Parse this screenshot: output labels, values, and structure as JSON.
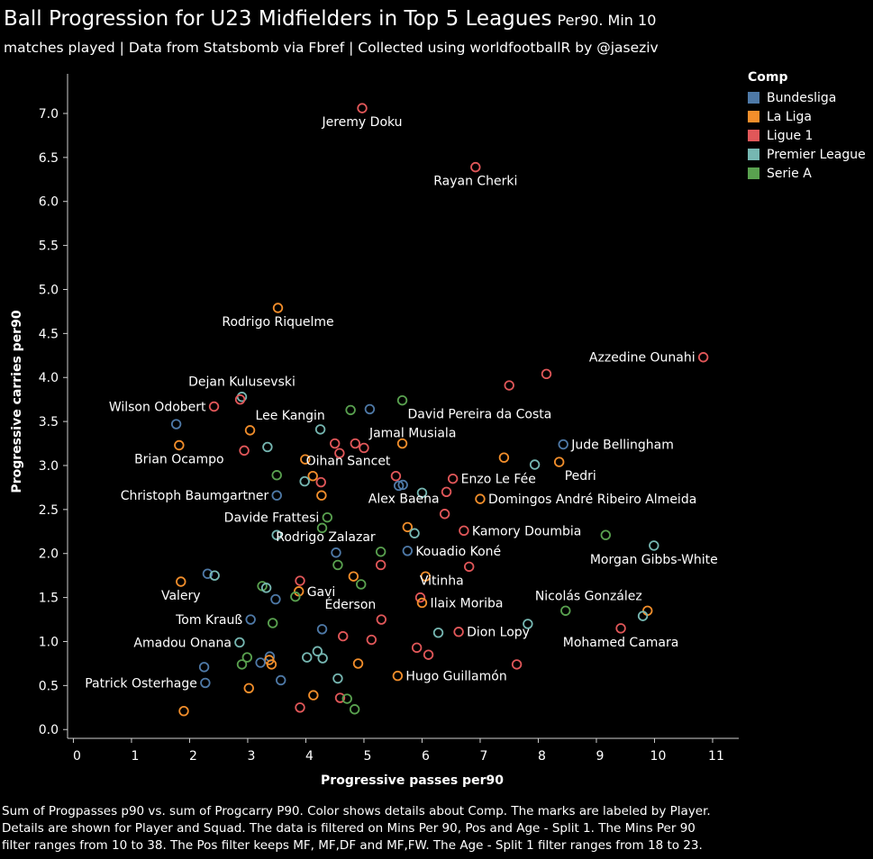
{
  "header": {
    "title": "Ball Progression for U23 Midfielders in Top 5 Leagues",
    "title_suffix": "Per90. Min 10",
    "subtitle": "matches played | Data from Statsbomb via Fbref | Collected using worldfootballR by @jaseziv"
  },
  "caption": {
    "line1": "Sum of Progpasses p90 vs. sum of Progcarry P90.  Color shows details about Comp.  The marks are labeled by Player.",
    "line2": "Details are shown for Player and Squad. The data is filtered on Mins Per 90, Pos and Age - Split 1. The Mins Per 90",
    "line3": "filter ranges from 10 to 38. The Pos filter keeps MF, MF,DF and MF,FW. The Age - Split 1 filter ranges from 18 to 23."
  },
  "legend": {
    "title": "Comp",
    "items": [
      {
        "label": "Bundesliga",
        "color": "#4e79a7"
      },
      {
        "label": "La Liga",
        "color": "#f28e2b"
      },
      {
        "label": "Ligue 1",
        "color": "#e15759"
      },
      {
        "label": "Premier League",
        "color": "#76b7b2"
      },
      {
        "label": "Serie A",
        "color": "#59a14f"
      }
    ]
  },
  "chart_data": {
    "type": "scatter",
    "xlabel": "Progressive passes per90",
    "ylabel": "Progressive carries per90",
    "xlim": [
      -0.1,
      11.45
    ],
    "ylim": [
      -0.1,
      7.45
    ],
    "xticks": [
      "0",
      "1",
      "2",
      "3",
      "4",
      "5",
      "6",
      "7",
      "8",
      "9",
      "10",
      "11"
    ],
    "yticks": [
      "0.0",
      "0.5",
      "1.0",
      "1.5",
      "2.0",
      "2.5",
      "3.0",
      "3.5",
      "4.0",
      "4.5",
      "5.0",
      "5.5",
      "6.0",
      "6.5",
      "7.0"
    ],
    "grid": false,
    "legend_position": "top-right",
    "colors": {
      "Bundesliga": "#4e79a7",
      "La Liga": "#f28e2b",
      "Ligue 1": "#e15759",
      "Premier League": "#76b7b2",
      "Serie A": "#59a14f"
    },
    "points": [
      {
        "x": 4.97,
        "y": 7.06,
        "comp": "Ligue 1",
        "label": "Jeremy Doku",
        "anchor": "below"
      },
      {
        "x": 6.92,
        "y": 6.39,
        "comp": "Ligue 1",
        "label": "Rayan Cherki",
        "anchor": "below"
      },
      {
        "x": 3.52,
        "y": 4.79,
        "comp": "La Liga",
        "label": "Rodrigo Riquelme",
        "anchor": "below"
      },
      {
        "x": 10.84,
        "y": 4.23,
        "comp": "Ligue 1",
        "label": "Azzedine Ounahi",
        "anchor": "left"
      },
      {
        "x": 8.14,
        "y": 4.04,
        "comp": "Ligue 1"
      },
      {
        "x": 7.5,
        "y": 3.91,
        "comp": "Ligue 1"
      },
      {
        "x": 2.9,
        "y": 3.78,
        "comp": "Premier League",
        "label": "Dejan Kulusevski",
        "anchor": "above"
      },
      {
        "x": 2.87,
        "y": 3.75,
        "comp": "Ligue 1"
      },
      {
        "x": 5.66,
        "y": 3.74,
        "comp": "Serie A",
        "label": "David Pereira da Costa",
        "anchor": "below-right"
      },
      {
        "x": 2.42,
        "y": 3.67,
        "comp": "Ligue 1",
        "label": "Wilson Odobert",
        "anchor": "left"
      },
      {
        "x": 4.77,
        "y": 3.63,
        "comp": "Serie A"
      },
      {
        "x": 5.1,
        "y": 3.64,
        "comp": "Bundesliga"
      },
      {
        "x": 1.77,
        "y": 3.47,
        "comp": "Bundesliga"
      },
      {
        "x": 3.04,
        "y": 3.4,
        "comp": "La Liga",
        "label": "Lee Kangin",
        "anchor": "above-right"
      },
      {
        "x": 4.25,
        "y": 3.41,
        "comp": "Premier League"
      },
      {
        "x": 5.0,
        "y": 3.2,
        "comp": "Ligue 1",
        "label": "Jamal Musiala",
        "anchor": "above-right"
      },
      {
        "x": 4.5,
        "y": 3.25,
        "comp": "Ligue 1"
      },
      {
        "x": 4.85,
        "y": 3.25,
        "comp": "Ligue 1"
      },
      {
        "x": 5.66,
        "y": 3.25,
        "comp": "La Liga"
      },
      {
        "x": 4.58,
        "y": 3.14,
        "comp": "Ligue 1"
      },
      {
        "x": 8.43,
        "y": 3.24,
        "comp": "Bundesliga",
        "label": "Jude Bellingham",
        "anchor": "right"
      },
      {
        "x": 1.82,
        "y": 3.23,
        "comp": "La Liga",
        "label": "Brian Ocampo",
        "anchor": "below"
      },
      {
        "x": 2.94,
        "y": 3.17,
        "comp": "Ligue 1"
      },
      {
        "x": 3.34,
        "y": 3.21,
        "comp": "Premier League"
      },
      {
        "x": 3.99,
        "y": 3.07,
        "comp": "La Liga"
      },
      {
        "x": 7.41,
        "y": 3.09,
        "comp": "La Liga"
      },
      {
        "x": 8.36,
        "y": 3.04,
        "comp": "La Liga",
        "label": "Pedri",
        "anchor": "below-right"
      },
      {
        "x": 7.94,
        "y": 3.01,
        "comp": "Premier League"
      },
      {
        "x": 5.55,
        "y": 2.88,
        "comp": "Ligue 1",
        "label": "Oihan Sancet",
        "anchor": "above-left"
      },
      {
        "x": 6.53,
        "y": 2.85,
        "comp": "Ligue 1",
        "label": "Enzo Le Fée",
        "anchor": "right"
      },
      {
        "x": 3.5,
        "y": 2.89,
        "comp": "Serie A"
      },
      {
        "x": 4.12,
        "y": 2.88,
        "comp": "La Liga"
      },
      {
        "x": 3.98,
        "y": 2.82,
        "comp": "Premier League"
      },
      {
        "x": 4.26,
        "y": 2.81,
        "comp": "Ligue 1"
      },
      {
        "x": 5.6,
        "y": 2.77,
        "comp": "Bundesliga"
      },
      {
        "x": 5.67,
        "y": 2.78,
        "comp": "Bundesliga"
      },
      {
        "x": 6.0,
        "y": 2.69,
        "comp": "Premier League"
      },
      {
        "x": 6.42,
        "y": 2.7,
        "comp": "Ligue 1"
      },
      {
        "x": 4.27,
        "y": 2.66,
        "comp": "La Liga"
      },
      {
        "x": 3.5,
        "y": 2.66,
        "comp": "Bundesliga",
        "label": "Christoph Baumgartner",
        "anchor": "left"
      },
      {
        "x": 7.0,
        "y": 2.62,
        "comp": "La Liga",
        "label": "Domingos André Ribeiro Almeida",
        "anchor": "right"
      },
      {
        "x": 4.37,
        "y": 2.41,
        "comp": "Serie A",
        "label": "Davide Frattesi",
        "anchor": "left"
      },
      {
        "x": 6.39,
        "y": 2.45,
        "comp": "Ligue 1",
        "label": "Alex Baena",
        "anchor": "above-left"
      },
      {
        "x": 4.28,
        "y": 2.29,
        "comp": "Serie A"
      },
      {
        "x": 5.75,
        "y": 2.3,
        "comp": "La Liga"
      },
      {
        "x": 5.87,
        "y": 2.23,
        "comp": "Premier League"
      },
      {
        "x": 6.72,
        "y": 2.26,
        "comp": "Ligue 1",
        "label": "Kamory Doumbia",
        "anchor": "right"
      },
      {
        "x": 3.5,
        "y": 2.21,
        "comp": "Premier League"
      },
      {
        "x": 9.16,
        "y": 2.21,
        "comp": "Serie A"
      },
      {
        "x": 9.99,
        "y": 2.09,
        "comp": "Premier League",
        "label": "Morgan Gibbs-White",
        "anchor": "below"
      },
      {
        "x": 5.75,
        "y": 2.03,
        "comp": "Bundesliga",
        "label": "Kouadio Koné",
        "anchor": "right"
      },
      {
        "x": 4.52,
        "y": 2.01,
        "comp": "Bundesliga"
      },
      {
        "x": 5.29,
        "y": 2.02,
        "comp": "Serie A",
        "label": "Rodrigo Zalazar",
        "anchor": "above-left"
      },
      {
        "x": 4.55,
        "y": 1.87,
        "comp": "Serie A"
      },
      {
        "x": 5.29,
        "y": 1.87,
        "comp": "Ligue 1"
      },
      {
        "x": 6.81,
        "y": 1.85,
        "comp": "Ligue 1",
        "label": "Vitinha",
        "anchor": "below-left"
      },
      {
        "x": 2.31,
        "y": 1.77,
        "comp": "Bundesliga"
      },
      {
        "x": 2.43,
        "y": 1.75,
        "comp": "Premier League"
      },
      {
        "x": 6.06,
        "y": 1.74,
        "comp": "La Liga"
      },
      {
        "x": 4.82,
        "y": 1.74,
        "comp": "La Liga"
      },
      {
        "x": 4.95,
        "y": 1.65,
        "comp": "Serie A"
      },
      {
        "x": 3.9,
        "y": 1.69,
        "comp": "Ligue 1"
      },
      {
        "x": 1.85,
        "y": 1.68,
        "comp": "La Liga",
        "label": "Valery",
        "anchor": "below"
      },
      {
        "x": 3.25,
        "y": 1.63,
        "comp": "Serie A"
      },
      {
        "x": 3.32,
        "y": 1.61,
        "comp": "Premier League"
      },
      {
        "x": 3.88,
        "y": 1.57,
        "comp": "La Liga",
        "label": "Gavi",
        "anchor": "right"
      },
      {
        "x": 3.82,
        "y": 1.51,
        "comp": "Serie A"
      },
      {
        "x": 5.97,
        "y": 1.5,
        "comp": "Ligue 1"
      },
      {
        "x": 3.48,
        "y": 1.48,
        "comp": "Bundesliga"
      },
      {
        "x": 6.0,
        "y": 1.44,
        "comp": "La Liga",
        "label": "Ilaix Moriba",
        "anchor": "right"
      },
      {
        "x": 9.88,
        "y": 1.35,
        "comp": "La Liga",
        "label": "Nicolás González",
        "anchor": "above-left"
      },
      {
        "x": 8.47,
        "y": 1.35,
        "comp": "Serie A"
      },
      {
        "x": 9.8,
        "y": 1.29,
        "comp": "Premier League"
      },
      {
        "x": 3.05,
        "y": 1.25,
        "comp": "Bundesliga",
        "label": "Tom Krauß",
        "anchor": "left"
      },
      {
        "x": 5.3,
        "y": 1.25,
        "comp": "Ligue 1",
        "label": "Éderson",
        "anchor": "above-left"
      },
      {
        "x": 3.43,
        "y": 1.21,
        "comp": "Serie A"
      },
      {
        "x": 7.82,
        "y": 1.2,
        "comp": "Premier League"
      },
      {
        "x": 9.42,
        "y": 1.15,
        "comp": "Ligue 1",
        "label": "Mohamed Camara",
        "anchor": "below"
      },
      {
        "x": 4.28,
        "y": 1.14,
        "comp": "Bundesliga"
      },
      {
        "x": 6.63,
        "y": 1.11,
        "comp": "Ligue 1",
        "label": "Dion Lopy",
        "anchor": "right"
      },
      {
        "x": 6.28,
        "y": 1.1,
        "comp": "Premier League"
      },
      {
        "x": 4.64,
        "y": 1.06,
        "comp": "Ligue 1"
      },
      {
        "x": 5.13,
        "y": 1.02,
        "comp": "Ligue 1"
      },
      {
        "x": 2.86,
        "y": 0.99,
        "comp": "Premier League",
        "label": "Amadou Onana",
        "anchor": "left"
      },
      {
        "x": 5.91,
        "y": 0.93,
        "comp": "Ligue 1"
      },
      {
        "x": 4.2,
        "y": 0.89,
        "comp": "Premier League"
      },
      {
        "x": 6.11,
        "y": 0.85,
        "comp": "Ligue 1"
      },
      {
        "x": 4.02,
        "y": 0.82,
        "comp": "Premier League"
      },
      {
        "x": 4.29,
        "y": 0.81,
        "comp": "Premier League"
      },
      {
        "x": 3.38,
        "y": 0.83,
        "comp": "Bundesliga"
      },
      {
        "x": 2.99,
        "y": 0.82,
        "comp": "Serie A"
      },
      {
        "x": 3.37,
        "y": 0.79,
        "comp": "La Liga"
      },
      {
        "x": 3.22,
        "y": 0.76,
        "comp": "Bundesliga"
      },
      {
        "x": 2.9,
        "y": 0.74,
        "comp": "Serie A"
      },
      {
        "x": 3.41,
        "y": 0.74,
        "comp": "La Liga"
      },
      {
        "x": 4.9,
        "y": 0.75,
        "comp": "La Liga"
      },
      {
        "x": 7.63,
        "y": 0.74,
        "comp": "Ligue 1"
      },
      {
        "x": 2.25,
        "y": 0.71,
        "comp": "Bundesliga"
      },
      {
        "x": 5.58,
        "y": 0.61,
        "comp": "La Liga",
        "label": "Hugo Guillamón",
        "anchor": "right"
      },
      {
        "x": 4.55,
        "y": 0.58,
        "comp": "Premier League"
      },
      {
        "x": 3.57,
        "y": 0.56,
        "comp": "Bundesliga"
      },
      {
        "x": 2.27,
        "y": 0.53,
        "comp": "Bundesliga",
        "label": "Patrick Osterhage",
        "anchor": "left"
      },
      {
        "x": 3.02,
        "y": 0.47,
        "comp": "La Liga"
      },
      {
        "x": 4.13,
        "y": 0.39,
        "comp": "La Liga"
      },
      {
        "x": 4.59,
        "y": 0.36,
        "comp": "Ligue 1"
      },
      {
        "x": 4.71,
        "y": 0.35,
        "comp": "Serie A"
      },
      {
        "x": 3.9,
        "y": 0.25,
        "comp": "Ligue 1"
      },
      {
        "x": 4.84,
        "y": 0.23,
        "comp": "Serie A"
      },
      {
        "x": 1.9,
        "y": 0.21,
        "comp": "La Liga"
      }
    ]
  }
}
